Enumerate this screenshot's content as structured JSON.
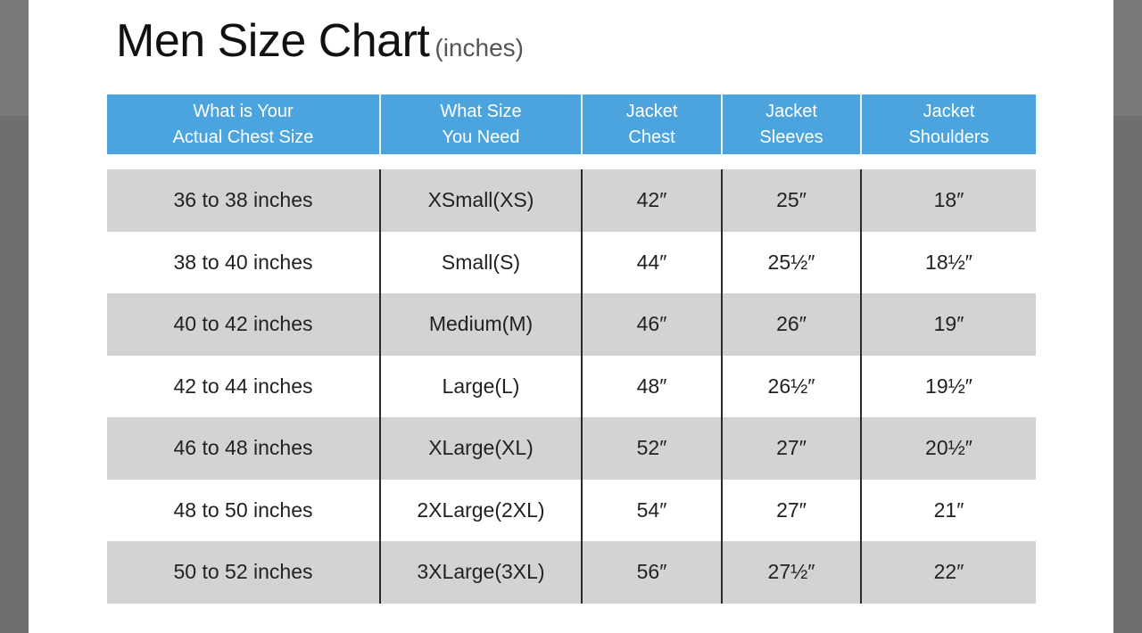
{
  "title": "Men Size Chart",
  "unit": "(inches)",
  "colors": {
    "header": "#4ba4de",
    "row_shade": "#d2d3d4",
    "backdrop": "#6f6f6f"
  },
  "headers": [
    "What is Your\nActual Chest Size",
    "What Size\nYou Need",
    "Jacket\nChest",
    "Jacket\nSleeves",
    "Jacket\nShoulders"
  ],
  "rows": [
    [
      "36 to 38 inches",
      "XSmall(XS)",
      "42″",
      "25″",
      "18″"
    ],
    [
      "38 to 40 inches",
      "Small(S)",
      "44″",
      "25½″",
      "18½″"
    ],
    [
      "40 to 42 inches",
      "Medium(M)",
      "46″",
      "26″",
      "19″"
    ],
    [
      "42 to 44 inches",
      "Large(L)",
      "48″",
      "26½″",
      "19½″"
    ],
    [
      "46 to 48 inches",
      "XLarge(XL)",
      "52″",
      "27″",
      "20½″"
    ],
    [
      "48 to 50 inches",
      "2XLarge(2XL)",
      "54″",
      "27″",
      "21″"
    ],
    [
      "50 to 52 inches",
      "3XLarge(3XL)",
      "56″",
      "27½″",
      "22″"
    ]
  ]
}
